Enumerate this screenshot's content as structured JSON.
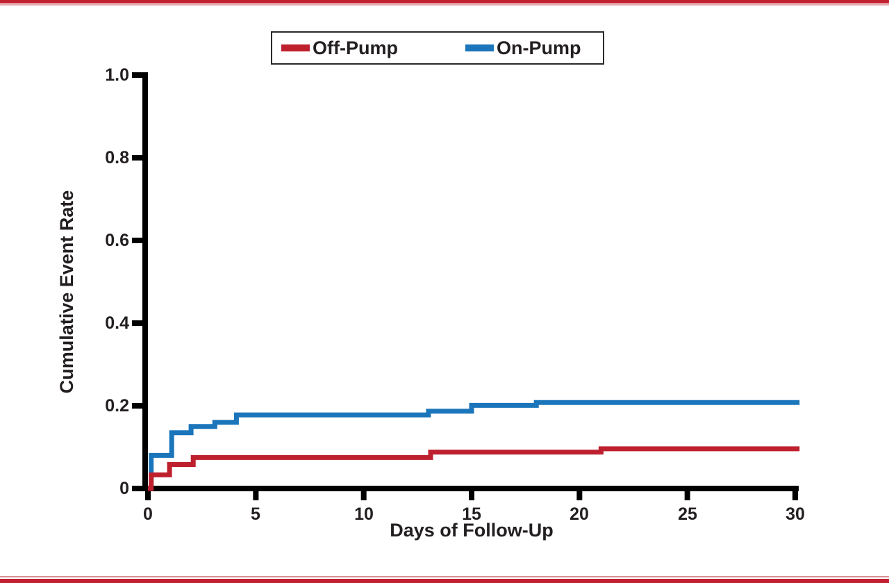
{
  "page": {
    "background": "#ffffff",
    "border_bar_color": "#c32032",
    "top_accent_color": "#e4aeb3",
    "bottom_accent_color": "#d98f94",
    "text_color": "#231f20",
    "axis_color": "#000000"
  },
  "legend": {
    "items": [
      {
        "label": "Off-Pump",
        "color": "#be202e"
      },
      {
        "label": "On-Pump",
        "color": "#1b75bb"
      }
    ]
  },
  "chart_data": {
    "type": "line",
    "subtype": "step-function-cumulative-incidence",
    "title": "",
    "xlabel": "Days of Follow-Up",
    "ylabel": "Cumulative Event Rate",
    "xlim": [
      0,
      30
    ],
    "ylim": [
      0,
      1.0
    ],
    "grid": false,
    "legend_position": "top-center",
    "x_ticks": [
      0,
      5,
      10,
      15,
      20,
      25,
      30
    ],
    "x_tick_labels": [
      "0",
      "5",
      "10",
      "15",
      "20",
      "25",
      "30"
    ],
    "y_ticks": [
      0,
      0.2,
      0.4,
      0.6,
      0.8,
      1.0
    ],
    "y_tick_labels": [
      "0",
      "0.2",
      "0.4",
      "0.6",
      "0.8",
      "1.0"
    ],
    "series": [
      {
        "name": "Off-Pump",
        "color": "#be202e",
        "line_width": 7,
        "x_end": 30.2,
        "points": [
          [
            0,
            0
          ],
          [
            0.15,
            0.033
          ],
          [
            1.0,
            0.058
          ],
          [
            2.1,
            0.075
          ],
          [
            13.1,
            0.088
          ],
          [
            21.0,
            0.096
          ]
        ]
      },
      {
        "name": "On-Pump",
        "color": "#1b75bb",
        "line_width": 7,
        "x_end": 30.2,
        "points": [
          [
            0,
            0
          ],
          [
            0.15,
            0.08
          ],
          [
            1.1,
            0.135
          ],
          [
            2.0,
            0.15
          ],
          [
            3.1,
            0.16
          ],
          [
            4.1,
            0.178
          ],
          [
            13.0,
            0.187
          ],
          [
            15.0,
            0.201
          ],
          [
            18.0,
            0.208
          ]
        ]
      }
    ]
  }
}
